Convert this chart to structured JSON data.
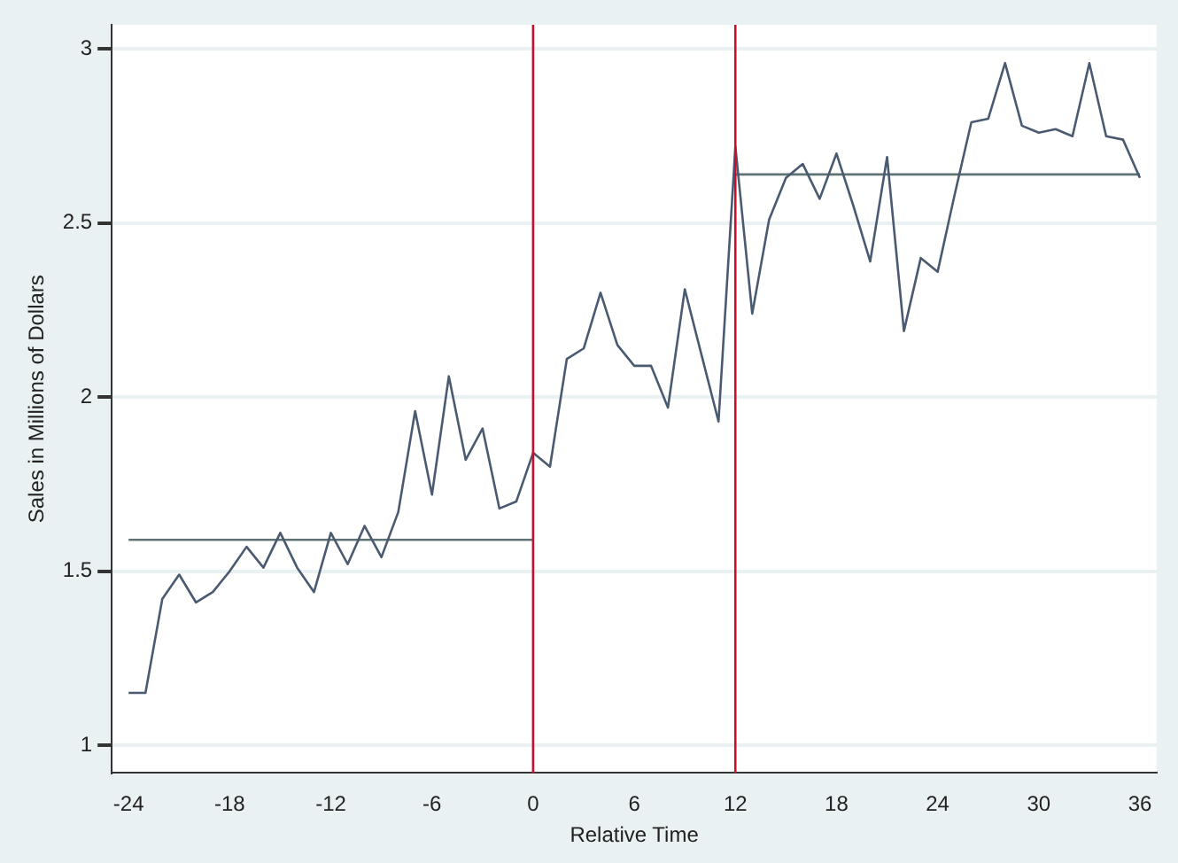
{
  "chart_data": {
    "type": "line",
    "xlabel": "Relative Time",
    "ylabel": "Sales in Millions of Dollars",
    "x": [
      -24,
      -23,
      -22,
      -21,
      -20,
      -19,
      -18,
      -17,
      -16,
      -15,
      -14,
      -13,
      -12,
      -11,
      -10,
      -9,
      -8,
      -7,
      -6,
      -5,
      -4,
      -3,
      -2,
      -1,
      0,
      1,
      2,
      3,
      4,
      5,
      6,
      7,
      8,
      9,
      10,
      11,
      12,
      13,
      14,
      15,
      16,
      17,
      18,
      19,
      20,
      21,
      22,
      23,
      24,
      25,
      26,
      27,
      28,
      29,
      30,
      31,
      32,
      33,
      34,
      35,
      36
    ],
    "series": [
      {
        "color": "#4a5a70",
        "values": [
          1.15,
          1.15,
          1.42,
          1.49,
          1.41,
          1.44,
          1.5,
          1.57,
          1.51,
          1.61,
          1.51,
          1.44,
          1.61,
          1.52,
          1.63,
          1.54,
          1.67,
          1.96,
          1.72,
          2.06,
          1.82,
          1.91,
          1.68,
          1.7,
          1.84,
          1.8,
          2.11,
          2.14,
          2.3,
          2.15,
          2.09,
          2.09,
          1.97,
          2.31,
          2.12,
          1.93,
          2.72,
          2.24,
          2.51,
          2.63,
          2.67,
          2.57,
          2.7,
          2.55,
          2.39,
          2.69,
          2.19,
          2.4,
          2.36,
          2.58,
          2.79,
          2.8,
          2.96,
          2.78,
          2.76,
          2.77,
          2.75,
          2.96,
          2.75,
          2.74,
          2.63
        ]
      },
      {
        "type": "line",
        "color": "#5f7377",
        "x": [
          -24,
          0
        ],
        "values": [
          1.59,
          1.59
        ]
      },
      {
        "type": "line",
        "color": "#5f7377",
        "x": [
          12,
          36
        ],
        "values": [
          2.64,
          2.64
        ]
      }
    ],
    "ref_lines": [
      {
        "axis": "x",
        "value": 0,
        "color": "#c8102e"
      },
      {
        "axis": "x",
        "value": 12,
        "color": "#c8102e"
      }
    ],
    "xlim": [
      -25,
      37
    ],
    "xticks": [
      -24,
      -18,
      -12,
      -6,
      0,
      6,
      12,
      18,
      24,
      30,
      36
    ],
    "ylim": [
      0.92,
      3.07
    ],
    "yticks": [
      1,
      1.5,
      2,
      2.5,
      3
    ],
    "grid": "y",
    "legend": false,
    "marker": "none",
    "line_style": "solid"
  }
}
